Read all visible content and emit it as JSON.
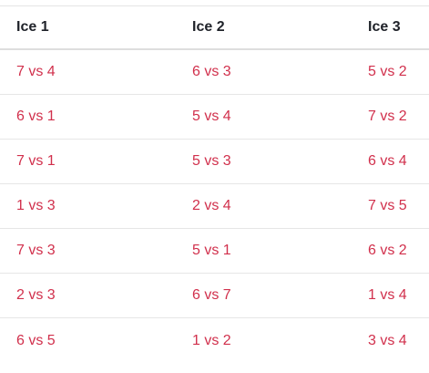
{
  "table": {
    "headers": [
      "Ice 1",
      "Ice 2",
      "Ice 3"
    ],
    "rows": [
      [
        "7 vs 4",
        "6 vs 3",
        "5 vs 2"
      ],
      [
        "6 vs 1",
        "5 vs 4",
        "7 vs 2"
      ],
      [
        "7 vs 1",
        "5 vs 3",
        "6 vs 4"
      ],
      [
        "1 vs 3",
        "2 vs 4",
        "7 vs 5"
      ],
      [
        "7 vs 3",
        "5 vs 1",
        "6 vs 2"
      ],
      [
        "2 vs 3",
        "6 vs 7",
        "1 vs 4"
      ],
      [
        "6 vs 5",
        "1 vs 2",
        "3 vs 4"
      ]
    ]
  },
  "colors": {
    "header_text": "#1f2229",
    "link_text": "#d1304c",
    "divider": "#e6e6e6"
  }
}
